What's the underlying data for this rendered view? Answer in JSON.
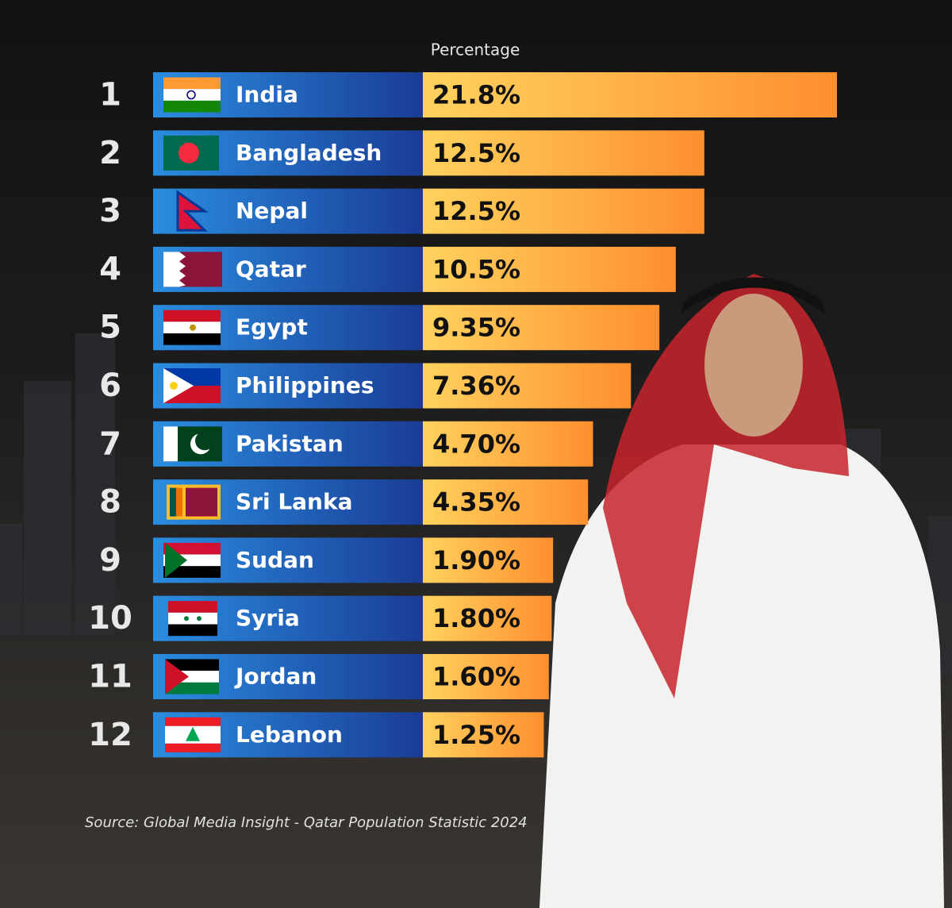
{
  "chart_data": {
    "type": "bar",
    "value_header": "Percentage",
    "ranks": [
      1,
      2,
      3,
      4,
      5,
      6,
      7,
      8,
      9,
      10,
      11,
      12
    ],
    "categories": [
      "India",
      "Bangladesh",
      "Nepal",
      "Qatar",
      "Egypt",
      "Philippines",
      "Pakistan",
      "Sri Lanka",
      "Sudan",
      "Syria",
      "Jordan",
      "Lebanon"
    ],
    "values": [
      21.8,
      12.5,
      12.5,
      10.5,
      9.35,
      7.36,
      4.7,
      4.35,
      1.9,
      1.8,
      1.6,
      1.25
    ],
    "value_labels": [
      "21.8%",
      "12.5%",
      "12.5%",
      "10.5%",
      "9.35%",
      "7.36%",
      "4.70%",
      "4.35%",
      "1.90%",
      "1.80%",
      "1.60%",
      "1.25%"
    ],
    "color": "#ff8f2e",
    "source": "Source: Global Media Insight - Qatar Population Statistic 2024"
  }
}
